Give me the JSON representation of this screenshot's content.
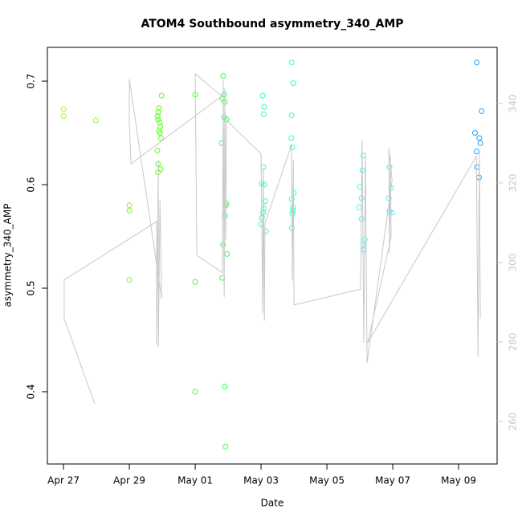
{
  "chart_data": {
    "type": "scatter",
    "title": "ATOM4 Southbound asymmetry_340_AMP",
    "x_label": "Date",
    "y_label": "asymmetry_340_AMP",
    "xlim": [
      -0.49,
      13.17
    ],
    "ylim": [
      0.3302,
      0.7326
    ],
    "y2lim": [
      249.3,
      354.1
    ],
    "xticks": [
      {
        "value": 0,
        "label": "Apr 27"
      },
      {
        "value": 2,
        "label": "Apr 29"
      },
      {
        "value": 4,
        "label": "May 01"
      },
      {
        "value": 6,
        "label": "May 03"
      },
      {
        "value": 8,
        "label": "May 05"
      },
      {
        "value": 10,
        "label": "May 07"
      },
      {
        "value": 12,
        "label": "May 09"
      }
    ],
    "yticks": [
      0.4,
      0.5,
      0.6,
      0.7
    ],
    "y2ticks": [
      260,
      280,
      300,
      320,
      340
    ],
    "series": [
      {
        "x": [
          0.0,
          0.0,
          0.98,
          2.0,
          2.0,
          2.0,
          2.98,
          2.9,
          2.88,
          2.86,
          2.87,
          2.92,
          2.94,
          2.9,
          2.93,
          2.96,
          2.85,
          2.87,
          2.95,
          2.87,
          4.0,
          4.0,
          4.0,
          4.85,
          4.88,
          4.83,
          4.9,
          4.88,
          4.95,
          4.8,
          4.95,
          4.93,
          4.9,
          4.85,
          4.97,
          4.82,
          4.9,
          4.92,
          6.05,
          6.1,
          6.08,
          6.07,
          6.02,
          6.1,
          6.12,
          6.08,
          6.06,
          6.03,
          6.0,
          6.15,
          6.93,
          6.98,
          6.93,
          6.92,
          6.95,
          7.0,
          6.93,
          6.97,
          6.97,
          6.95,
          6.93,
          9.1,
          9.08,
          9.0,
          9.05,
          8.98,
          9.05,
          9.15,
          9.1,
          9.12,
          9.9,
          9.95,
          9.88,
          9.9,
          9.97,
          12.55,
          12.7,
          12.5,
          12.63,
          12.66,
          12.55,
          12.56,
          12.62
        ],
        "values": [
          0.673,
          0.666,
          0.662,
          0.58,
          0.575,
          0.508,
          0.686,
          0.674,
          0.67,
          0.666,
          0.663,
          0.66,
          0.656,
          0.652,
          0.65,
          0.645,
          0.633,
          0.62,
          0.615,
          0.612,
          0.687,
          0.506,
          0.4,
          0.705,
          0.687,
          0.683,
          0.68,
          0.665,
          0.663,
          0.64,
          0.582,
          0.58,
          0.57,
          0.542,
          0.533,
          0.51,
          0.405,
          0.347,
          0.686,
          0.675,
          0.668,
          0.617,
          0.601,
          0.6,
          0.584,
          0.577,
          0.573,
          0.568,
          0.562,
          0.555,
          0.718,
          0.698,
          0.667,
          0.645,
          0.636,
          0.592,
          0.586,
          0.578,
          0.575,
          0.572,
          0.558,
          0.628,
          0.614,
          0.598,
          0.587,
          0.578,
          0.567,
          0.547,
          0.542,
          0.537,
          0.617,
          0.597,
          0.587,
          0.574,
          0.573,
          0.718,
          0.671,
          0.65,
          0.645,
          0.64,
          0.632,
          0.617,
          0.607
        ],
        "colors": [
          "#99ff1a",
          "#99ff1a",
          "#8cff1a",
          "#73ff1a",
          "#73ff1a",
          "#73ff1a",
          "#5cff1a",
          "#5cff1a",
          "#5cff1a",
          "#5cff1a",
          "#5cff1a",
          "#5cff1a",
          "#5cff1a",
          "#5cff1a",
          "#5cff1a",
          "#5cff1a",
          "#5cff1a",
          "#5cff1a",
          "#5cff1a",
          "#5cff1a",
          "#40ff33",
          "#40ff33",
          "#40ff33",
          "#33ff4d",
          "#33ff4d",
          "#33ff4d",
          "#33ff4d",
          "#33ff4d",
          "#33ff4d",
          "#33ff4d",
          "#33ff4d",
          "#33ff4d",
          "#33ff4d",
          "#33ff4d",
          "#33ff4d",
          "#33ff4d",
          "#33ff4d",
          "#33ff4d",
          "#33ffa6",
          "#33ffa6",
          "#33ffa6",
          "#33ffa6",
          "#33ffa6",
          "#33ffa6",
          "#33ffa6",
          "#33ffa6",
          "#33ffa6",
          "#33ffa6",
          "#33ffa6",
          "#33ffa6",
          "#33ffc4",
          "#33ffc4",
          "#33ffc4",
          "#33ffc4",
          "#33ffc4",
          "#33ffc4",
          "#33ffc4",
          "#33ffc4",
          "#33ffc4",
          "#33ffc4",
          "#33ffc4",
          "#33ffee",
          "#33ffee",
          "#33ffee",
          "#33ffee",
          "#33ffee",
          "#33ffee",
          "#33ffee",
          "#33ffee",
          "#33ffee",
          "#33f5ff",
          "#33f5ff",
          "#33f5ff",
          "#33f5ff",
          "#33f5ff",
          "#1aa3ff",
          "#1aa3ff",
          "#1aa3ff",
          "#1aa3ff",
          "#1aa3ff",
          "#1aa3ff",
          "#1aa3ff",
          "#1aa3ff"
        ]
      },
      {
        "axis": "y2",
        "color": "#c8c8c8",
        "x": [
          0.95,
          0.02,
          0.02,
          2.83,
          2.83,
          2.88,
          2.88,
          2.93,
          2.98,
          2.0,
          2.0,
          2.05,
          4.8,
          4.0,
          4.05,
          4.83,
          4.85,
          4.88,
          4.9,
          4.93,
          4.95,
          6.0,
          6.05,
          6.07,
          6.1,
          6.12,
          6.93,
          6.95,
          6.98,
          7.0,
          9.02,
          9.07,
          9.12,
          9.17,
          9.22,
          9.98,
          9.88,
          9.9,
          9.93,
          9.95,
          9.24,
          12.54,
          12.59,
          12.63,
          12.66
        ],
        "values": [
          264.4,
          285.9,
          295.6,
          310.3,
          279.2,
          325.7,
          278.8,
          315.6,
          290.9,
          346.1,
          334.7,
          324.8,
          341.8,
          347.5,
          301.8,
          297.4,
          345.9,
          291.3,
          343.8,
          305.5,
          335.8,
          327.3,
          287.3,
          323.6,
          285.3,
          309.9,
          329.7,
          295.4,
          325.7,
          289.3,
          293.3,
          330.7,
          279.8,
          327.7,
          274.7,
          320.6,
          328.7,
          302.4,
          326.7,
          306.3,
          279.8,
          326.7,
          276.2,
          327.7,
          285.9
        ]
      }
    ]
  }
}
